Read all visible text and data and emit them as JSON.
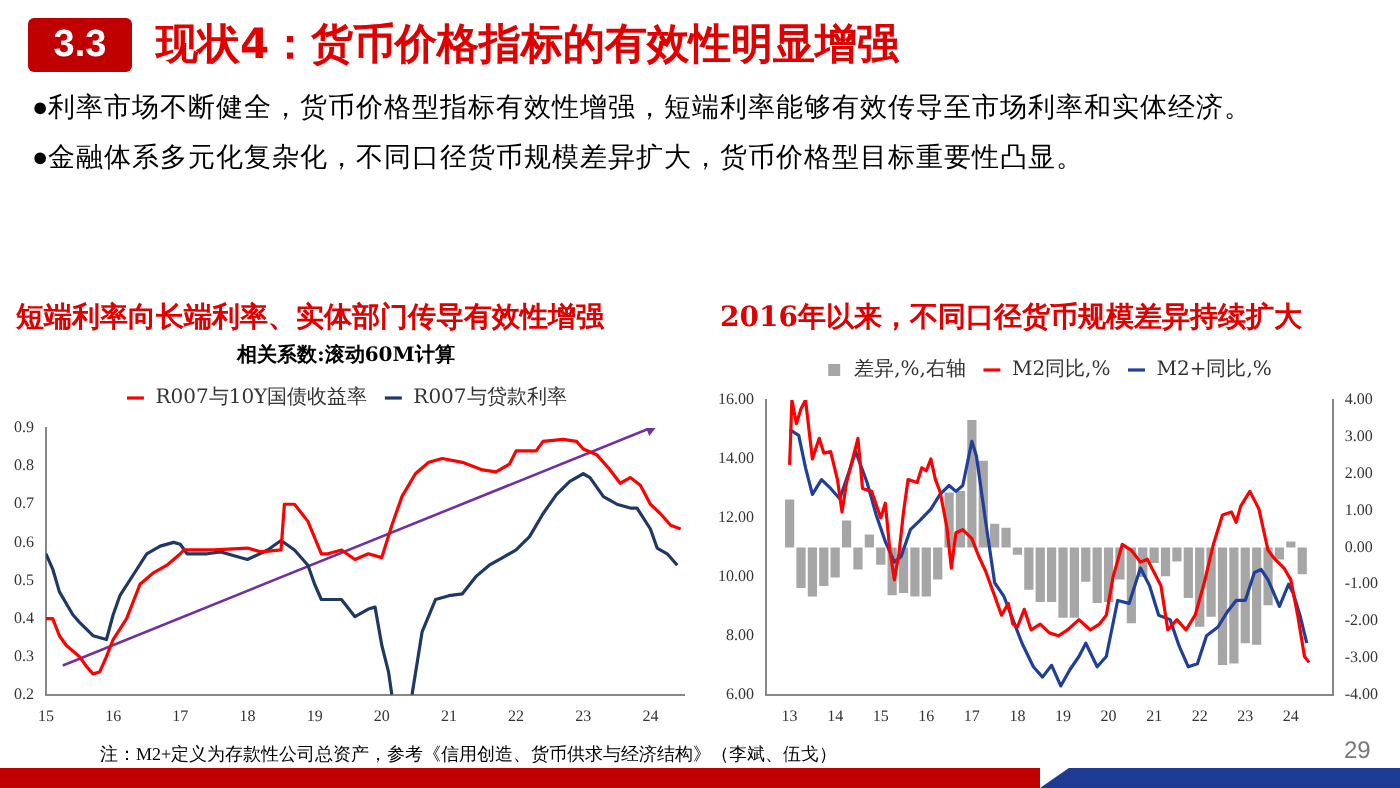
{
  "chart_data": [
    {
      "type": "other",
      "title": "现状4：货币价格指标的有效性明显增强",
      "annotations": [
        "3.3",
        "●利率市场不断健全，货币价格型指标有效性增强，短端利率能够有效传导至市场利率和实体经济。",
        "●金融体系多元化复杂化，不同口径货币规模差异扩大，货币价格型目标重要性凸显。",
        "注：M2+定义为存款性公司总资产，参考《信用创造、货币供求与经济结构》（李斌、伍戈）",
        "29"
      ]
    },
    {
      "type": "line",
      "title": "短端利率向长端利率、实体部门传导有效性增强",
      "subtitle": "相关系数:滚动60M计算",
      "xlim": [
        15,
        24.5
      ],
      "xticks": [
        15,
        16,
        17,
        18,
        19,
        20,
        21,
        22,
        23,
        24
      ],
      "ylim": [
        0.2,
        0.9
      ],
      "yticks": [
        0.2,
        0.3,
        0.4,
        0.5,
        0.6,
        0.7,
        0.8,
        0.9
      ],
      "grid": false,
      "legend": "top",
      "marker": "none",
      "line_style": "solid",
      "series": [
        {
          "name": "R007与10Y国债收益率",
          "color": "#ff0000",
          "x": [
            15.0,
            15.1,
            15.2,
            15.3,
            15.5,
            15.6,
            15.7,
            15.8,
            15.9,
            16.0,
            16.2,
            16.4,
            16.6,
            16.8,
            17.0,
            17.05,
            17.5,
            18.0,
            18.2,
            18.5,
            18.55,
            18.7,
            18.9,
            19.1,
            19.2,
            19.4,
            19.6,
            19.8,
            20.0,
            20.15,
            20.3,
            20.5,
            20.7,
            20.9,
            21.2,
            21.5,
            21.7,
            21.9,
            22.0,
            22.3,
            22.4,
            22.7,
            22.9,
            23.0,
            23.2,
            23.4,
            23.55,
            23.7,
            23.85,
            24.0,
            24.15,
            24.3,
            24.45
          ],
          "values": [
            0.4,
            0.4,
            0.355,
            0.33,
            0.3,
            0.275,
            0.255,
            0.26,
            0.3,
            0.345,
            0.4,
            0.49,
            0.52,
            0.54,
            0.57,
            0.58,
            0.58,
            0.585,
            0.575,
            0.58,
            0.7,
            0.7,
            0.655,
            0.57,
            0.57,
            0.58,
            0.555,
            0.57,
            0.56,
            0.645,
            0.72,
            0.78,
            0.81,
            0.82,
            0.81,
            0.79,
            0.785,
            0.805,
            0.84,
            0.84,
            0.865,
            0.87,
            0.865,
            0.845,
            0.83,
            0.79,
            0.755,
            0.77,
            0.75,
            0.7,
            0.675,
            0.645,
            0.635
          ]
        },
        {
          "name": "R007与贷款利率",
          "color": "#1f3864",
          "x": [
            15.0,
            15.1,
            15.2,
            15.4,
            15.5,
            15.7,
            15.9,
            16.0,
            16.1,
            16.3,
            16.5,
            16.7,
            16.9,
            17.0,
            17.1,
            17.4,
            17.6,
            17.8,
            18.0,
            18.3,
            18.5,
            18.7,
            18.9,
            19.0,
            19.1,
            19.3,
            19.4,
            19.6,
            19.8,
            19.9,
            20.0,
            20.1,
            20.15,
            20.25,
            20.35,
            20.45,
            20.6,
            20.8,
            21.0,
            21.2,
            21.4,
            21.6,
            21.8,
            22.0,
            22.2,
            22.4,
            22.6,
            22.8,
            23.0,
            23.1,
            23.3,
            23.5,
            23.7,
            23.8,
            24.0,
            24.1,
            24.25,
            24.4
          ],
          "values": [
            0.57,
            0.53,
            0.47,
            0.41,
            0.39,
            0.355,
            0.345,
            0.41,
            0.46,
            0.515,
            0.57,
            0.59,
            0.6,
            0.595,
            0.57,
            0.57,
            0.575,
            0.565,
            0.555,
            0.58,
            0.605,
            0.58,
            0.54,
            0.49,
            0.45,
            0.45,
            0.45,
            0.405,
            0.425,
            0.43,
            0.33,
            0.26,
            0.2,
            null,
            null,
            0.2,
            0.365,
            0.45,
            0.46,
            0.465,
            0.51,
            0.54,
            0.56,
            0.58,
            0.615,
            0.675,
            0.725,
            0.76,
            0.78,
            0.77,
            0.72,
            0.7,
            0.69,
            0.69,
            0.635,
            0.585,
            0.57,
            0.54
          ]
        },
        {
          "type": "line",
          "color": "#7030a0",
          "marker": "triangle",
          "x": [
            15.25,
            24.0
          ],
          "values": [
            0.277,
            0.9
          ]
        }
      ]
    },
    {
      "type": "line",
      "title": "2016年以来，不同口径货币规模差异持续扩大",
      "xlim": [
        13,
        24.4
      ],
      "xticks": [
        13,
        14,
        15,
        16,
        17,
        18,
        19,
        20,
        21,
        22,
        23,
        24
      ],
      "ylim": [
        6,
        16
      ],
      "yticks": [
        {
          "value": 6,
          "label": "6.00"
        },
        {
          "value": 8,
          "label": "8.00"
        },
        {
          "value": 10,
          "label": "10.00"
        },
        {
          "value": 12,
          "label": "12.00"
        },
        {
          "value": 14,
          "label": "14.00"
        },
        {
          "value": 16,
          "label": "16.00"
        }
      ],
      "y2lim": [
        -4,
        4
      ],
      "y2ticks": [
        {
          "value": -4,
          "label": "-4.00"
        },
        {
          "value": -3,
          "label": "-3.00"
        },
        {
          "value": -2,
          "label": "-2.00"
        },
        {
          "value": -1,
          "label": "-1.00"
        },
        {
          "value": 0,
          "label": "0.00"
        },
        {
          "value": 1,
          "label": "1.00"
        },
        {
          "value": 2,
          "label": "2.00"
        },
        {
          "value": 3,
          "label": "3.00"
        },
        {
          "value": 4,
          "label": "4.00"
        }
      ],
      "grid": false,
      "legend": "top",
      "marker": "none",
      "line_style": "solid",
      "series": [
        {
          "name": "差异,%,右轴",
          "type": "bar",
          "axis": "y2",
          "color": "#a6a6a6",
          "x": [
            13.0,
            13.25,
            13.5,
            13.75,
            14.0,
            14.25,
            14.5,
            14.75,
            15.0,
            15.25,
            15.5,
            15.75,
            16.0,
            16.25,
            16.5,
            16.75,
            17.0,
            17.25,
            17.5,
            17.75,
            18.0,
            18.25,
            18.5,
            18.75,
            19.0,
            19.25,
            19.5,
            19.75,
            20.0,
            20.25,
            20.5,
            20.75,
            21.0,
            21.25,
            21.5,
            21.75,
            22.0,
            22.25,
            22.5,
            22.75,
            23.0,
            23.25,
            23.5,
            23.75,
            24.0,
            24.25
          ],
          "values": [
            1.3,
            -1.1,
            -1.33,
            -1.05,
            -0.82,
            0.73,
            -0.6,
            0.35,
            -0.47,
            -1.3,
            -1.24,
            -1.33,
            -1.33,
            -0.87,
            1.49,
            1.53,
            3.46,
            2.35,
            0.64,
            0.53,
            -0.2,
            -1.15,
            -1.48,
            -1.48,
            -1.91,
            -1.91,
            -0.93,
            -1.51,
            -1.48,
            -0.87,
            -2.06,
            -0.8,
            -0.42,
            -0.78,
            -0.38,
            -1.37,
            -2.15,
            -1.88,
            -3.19,
            -3.15,
            -2.6,
            -2.64,
            -1.57,
            -0.33,
            0.16,
            -0.73
          ]
        },
        {
          "name": "M2同比,%",
          "color": "#ff0000",
          "x": [
            13.0,
            13.05,
            13.15,
            13.25,
            13.35,
            13.5,
            13.65,
            13.75,
            13.9,
            14.05,
            14.15,
            14.25,
            14.4,
            14.5,
            14.6,
            14.8,
            15.0,
            15.1,
            15.2,
            15.3,
            15.4,
            15.5,
            15.6,
            15.8,
            15.9,
            16.0,
            16.1,
            16.2,
            16.3,
            16.45,
            16.55,
            16.65,
            16.8,
            17.0,
            17.15,
            17.3,
            17.5,
            17.65,
            17.8,
            17.9,
            18.0,
            18.15,
            18.3,
            18.5,
            18.7,
            18.9,
            19.1,
            19.35,
            19.6,
            19.8,
            19.95,
            20.1,
            20.3,
            20.5,
            20.7,
            20.85,
            21.0,
            21.15,
            21.3,
            21.5,
            21.7,
            21.9,
            22.1,
            22.3,
            22.5,
            22.7,
            22.8,
            22.9,
            23.1,
            23.3,
            23.5,
            23.65,
            23.85,
            24.0,
            24.15,
            24.3,
            24.4
          ],
          "values": [
            13.8,
            16.0,
            15.2,
            15.7,
            16.0,
            14.0,
            14.7,
            14.2,
            14.25,
            13.3,
            12.2,
            13.2,
            14.1,
            14.7,
            13.0,
            12.9,
            12.0,
            12.5,
            10.9,
            9.9,
            10.8,
            12.2,
            13.3,
            13.2,
            13.7,
            13.6,
            14.0,
            13.3,
            12.9,
            11.7,
            10.3,
            11.5,
            11.6,
            11.3,
            10.7,
            10.2,
            9.35,
            8.7,
            9.1,
            8.4,
            8.3,
            8.9,
            8.2,
            8.4,
            8.1,
            8.0,
            8.2,
            8.55,
            8.2,
            8.4,
            8.7,
            10.0,
            11.1,
            10.9,
            10.5,
            10.6,
            10.15,
            9.7,
            8.2,
            8.55,
            8.2,
            8.7,
            9.8,
            11.1,
            12.1,
            12.2,
            11.85,
            12.4,
            12.9,
            12.3,
            10.9,
            10.6,
            10.3,
            9.9,
            8.7,
            7.3,
            7.1
          ]
        },
        {
          "name": "M2+同比,%",
          "color": "#1f3f99",
          "x": [
            13.0,
            13.2,
            13.35,
            13.5,
            13.7,
            13.9,
            14.1,
            14.3,
            14.45,
            14.7,
            14.9,
            15.1,
            15.3,
            15.45,
            15.65,
            15.85,
            16.1,
            16.3,
            16.5,
            16.65,
            16.8,
            17.0,
            17.1,
            17.3,
            17.5,
            17.7,
            17.9,
            18.1,
            18.35,
            18.55,
            18.75,
            18.95,
            19.15,
            19.35,
            19.5,
            19.75,
            19.95,
            20.2,
            20.45,
            20.7,
            20.9,
            21.1,
            21.35,
            21.55,
            21.75,
            21.95,
            22.15,
            22.4,
            22.6,
            22.8,
            23.0,
            23.2,
            23.35,
            23.5,
            23.75,
            23.95,
            24.05,
            24.2,
            24.35
          ],
          "values": [
            15.0,
            14.8,
            13.7,
            12.8,
            13.3,
            13.0,
            12.65,
            13.55,
            14.25,
            13.2,
            12.1,
            11.2,
            10.5,
            10.7,
            11.6,
            11.9,
            12.3,
            12.8,
            13.1,
            12.9,
            13.1,
            14.6,
            14.1,
            11.9,
            9.8,
            9.35,
            8.55,
            7.75,
            6.95,
            6.6,
            7.0,
            6.3,
            6.85,
            7.3,
            7.75,
            6.95,
            7.3,
            9.2,
            9.1,
            10.3,
            9.7,
            8.7,
            8.55,
            7.65,
            6.95,
            7.05,
            8.0,
            8.3,
            8.8,
            9.2,
            9.2,
            10.15,
            10.25,
            9.9,
            9.0,
            9.75,
            9.45,
            8.7,
            7.75
          ]
        }
      ]
    }
  ]
}
